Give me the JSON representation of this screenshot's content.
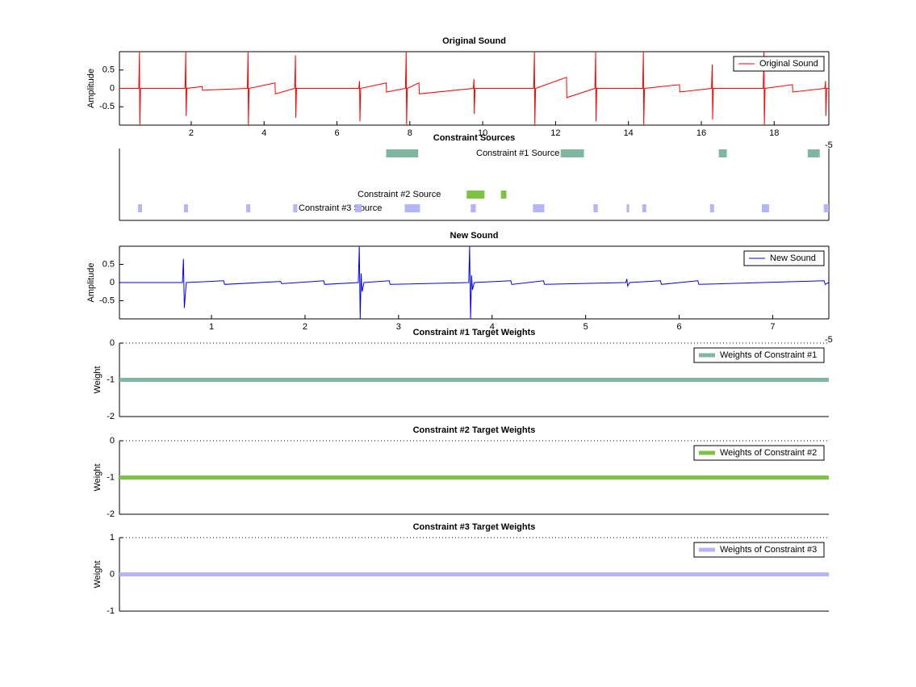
{
  "chart_data": [
    {
      "type": "line",
      "title": "Original Sound",
      "ylabel": "Amplitude",
      "xlim": [
        0.03,
        19.5
      ],
      "ylim": [
        -1,
        1
      ],
      "xticks": [
        2,
        4,
        6,
        8,
        10,
        12,
        14,
        16,
        18
      ],
      "yticks": [
        -0.5,
        0,
        0.5
      ],
      "legend": "upper right",
      "series": [
        {
          "name": "Original Sound",
          "color": "#ff0000",
          "x": [
            0.03,
            0.56,
            0.58,
            0.59,
            0.61,
            1.83,
            1.85,
            1.86,
            1.88,
            2.3,
            2.31,
            3.54,
            3.56,
            3.57,
            3.59,
            4.3,
            4.31,
            4.84,
            4.86,
            4.87,
            4.89,
            6.6,
            6.62,
            6.63,
            6.65,
            7.35,
            7.36,
            7.88,
            7.9,
            7.91,
            7.93,
            8.25,
            8.26,
            9.74,
            9.76,
            9.77,
            9.79,
            11.4,
            11.42,
            11.43,
            11.45,
            12.3,
            12.31,
            13.08,
            13.1,
            13.11,
            13.13,
            14.39,
            14.41,
            14.42,
            14.44,
            15.4,
            15.41,
            16.28,
            16.3,
            16.31,
            16.33,
            17.7,
            17.72,
            17.73,
            17.75,
            18.5,
            18.51,
            19.39,
            19.41,
            19.42,
            19.44,
            19.5
          ],
          "values": [
            0,
            0,
            1,
            -1,
            0,
            0,
            1,
            -0.75,
            0,
            0.05,
            -0.05,
            0,
            1,
            -1,
            0,
            0.15,
            -0.15,
            0,
            0.9,
            -0.8,
            0,
            0,
            0.2,
            -0.9,
            0,
            0.15,
            -0.1,
            0,
            1,
            -1,
            0,
            0.15,
            -0.15,
            0,
            0.25,
            -0.7,
            0,
            0,
            1,
            -1,
            0,
            0.3,
            -0.25,
            0,
            1,
            -0.9,
            0,
            0,
            1,
            -1,
            0,
            0.1,
            -0.1,
            0,
            0.65,
            -0.85,
            0,
            0,
            1,
            -1,
            0,
            0.1,
            -0.1,
            0,
            0.2,
            -0.75,
            0,
            0
          ]
        }
      ]
    },
    {
      "type": "timeline",
      "title": "Constraint Sources",
      "exponent_label": "-5",
      "xlim": [
        0.03,
        19.5
      ],
      "series": [
        {
          "name": "Constraint #1 Source",
          "color": "#7fb7a0",
          "segments": [
            [
              7.35,
              8.23
            ],
            [
              12.14,
              12.78
            ],
            [
              16.48,
              16.7
            ],
            [
              18.92,
              19.25
            ]
          ]
        },
        {
          "name": "Constraint #2 Source",
          "color": "#7dc242",
          "segments": [
            [
              9.56,
              10.05
            ],
            [
              10.5,
              10.65
            ]
          ]
        },
        {
          "name": "Constraint #3 Source",
          "color": "#b4b4f8",
          "segments": [
            [
              0.54,
              0.65
            ],
            [
              1.8,
              1.91
            ],
            [
              3.51,
              3.62
            ],
            [
              4.8,
              4.91
            ],
            [
              6.5,
              6.68
            ],
            [
              7.86,
              8.28
            ],
            [
              9.67,
              9.81
            ],
            [
              11.38,
              11.69
            ],
            [
              13.04,
              13.16
            ],
            [
              13.95,
              14.02
            ],
            [
              14.38,
              14.49
            ],
            [
              16.24,
              16.35
            ],
            [
              17.66,
              17.86
            ],
            [
              19.36,
              19.5
            ]
          ]
        }
      ]
    },
    {
      "type": "line",
      "title": "New Sound",
      "ylabel": "Amplitude",
      "xlim": [
        0.016,
        7.6
      ],
      "ylim": [
        -1,
        1
      ],
      "xticks": [
        1,
        2,
        3,
        4,
        5,
        6,
        7
      ],
      "yticks": [
        -0.5,
        0,
        0.5
      ],
      "legend": "upper right",
      "series": [
        {
          "name": "New Sound",
          "color": "#0000ff",
          "x": [
            0.03,
            0.69,
            0.7,
            0.71,
            0.73,
            1.13,
            1.14,
            1.74,
            1.75,
            2.2,
            2.21,
            2.57,
            2.58,
            2.59,
            2.6,
            2.61,
            2.63,
            2.9,
            2.91,
            3.75,
            3.76,
            3.77,
            3.78,
            3.79,
            3.81,
            4.2,
            4.21,
            4.55,
            4.56,
            5.43,
            5.44,
            5.45,
            5.47,
            5.8,
            5.81,
            6.2,
            6.21,
            7.55,
            7.56,
            7.6
          ],
          "values": [
            0,
            0,
            0.65,
            -0.7,
            0,
            0.05,
            -0.05,
            0.03,
            -0.03,
            0.05,
            -0.05,
            0,
            1,
            -1,
            0.25,
            -0.25,
            0,
            0.05,
            -0.05,
            0,
            1,
            -1,
            0.2,
            -0.2,
            0,
            0.05,
            -0.05,
            0.05,
            -0.05,
            0,
            0.1,
            -0.1,
            0,
            0.05,
            -0.05,
            0.05,
            -0.05,
            0.05,
            -0.05,
            0
          ]
        }
      ]
    },
    {
      "type": "weight",
      "title": "Constraint #1 Target Weights",
      "ylabel": "Weight",
      "exponent_label": "-5",
      "ylim": [
        -2,
        0
      ],
      "yticks": [
        -2,
        -1,
        0
      ],
      "legend": "upper right",
      "series": [
        {
          "name": "Weights of Constraint #1",
          "color": "#7fb7a0",
          "values": [
            -1,
            -1
          ]
        }
      ]
    },
    {
      "type": "weight",
      "title": "Constraint #2 Target Weights",
      "ylabel": "Weight",
      "ylim": [
        -2,
        0
      ],
      "yticks": [
        -2,
        -1,
        0
      ],
      "legend": "upper right",
      "series": [
        {
          "name": "Weights of Constraint #2",
          "color": "#7dc242",
          "values": [
            -1,
            -1
          ]
        }
      ]
    },
    {
      "type": "weight",
      "title": "Constraint #3 Target Weights",
      "ylabel": "Weight",
      "ylim": [
        -1,
        1
      ],
      "yticks": [
        -1,
        0,
        1
      ],
      "legend": "upper right",
      "series": [
        {
          "name": "Weights of Constraint #3",
          "color": "#b4b4f8",
          "values": [
            0,
            0
          ]
        }
      ]
    }
  ]
}
